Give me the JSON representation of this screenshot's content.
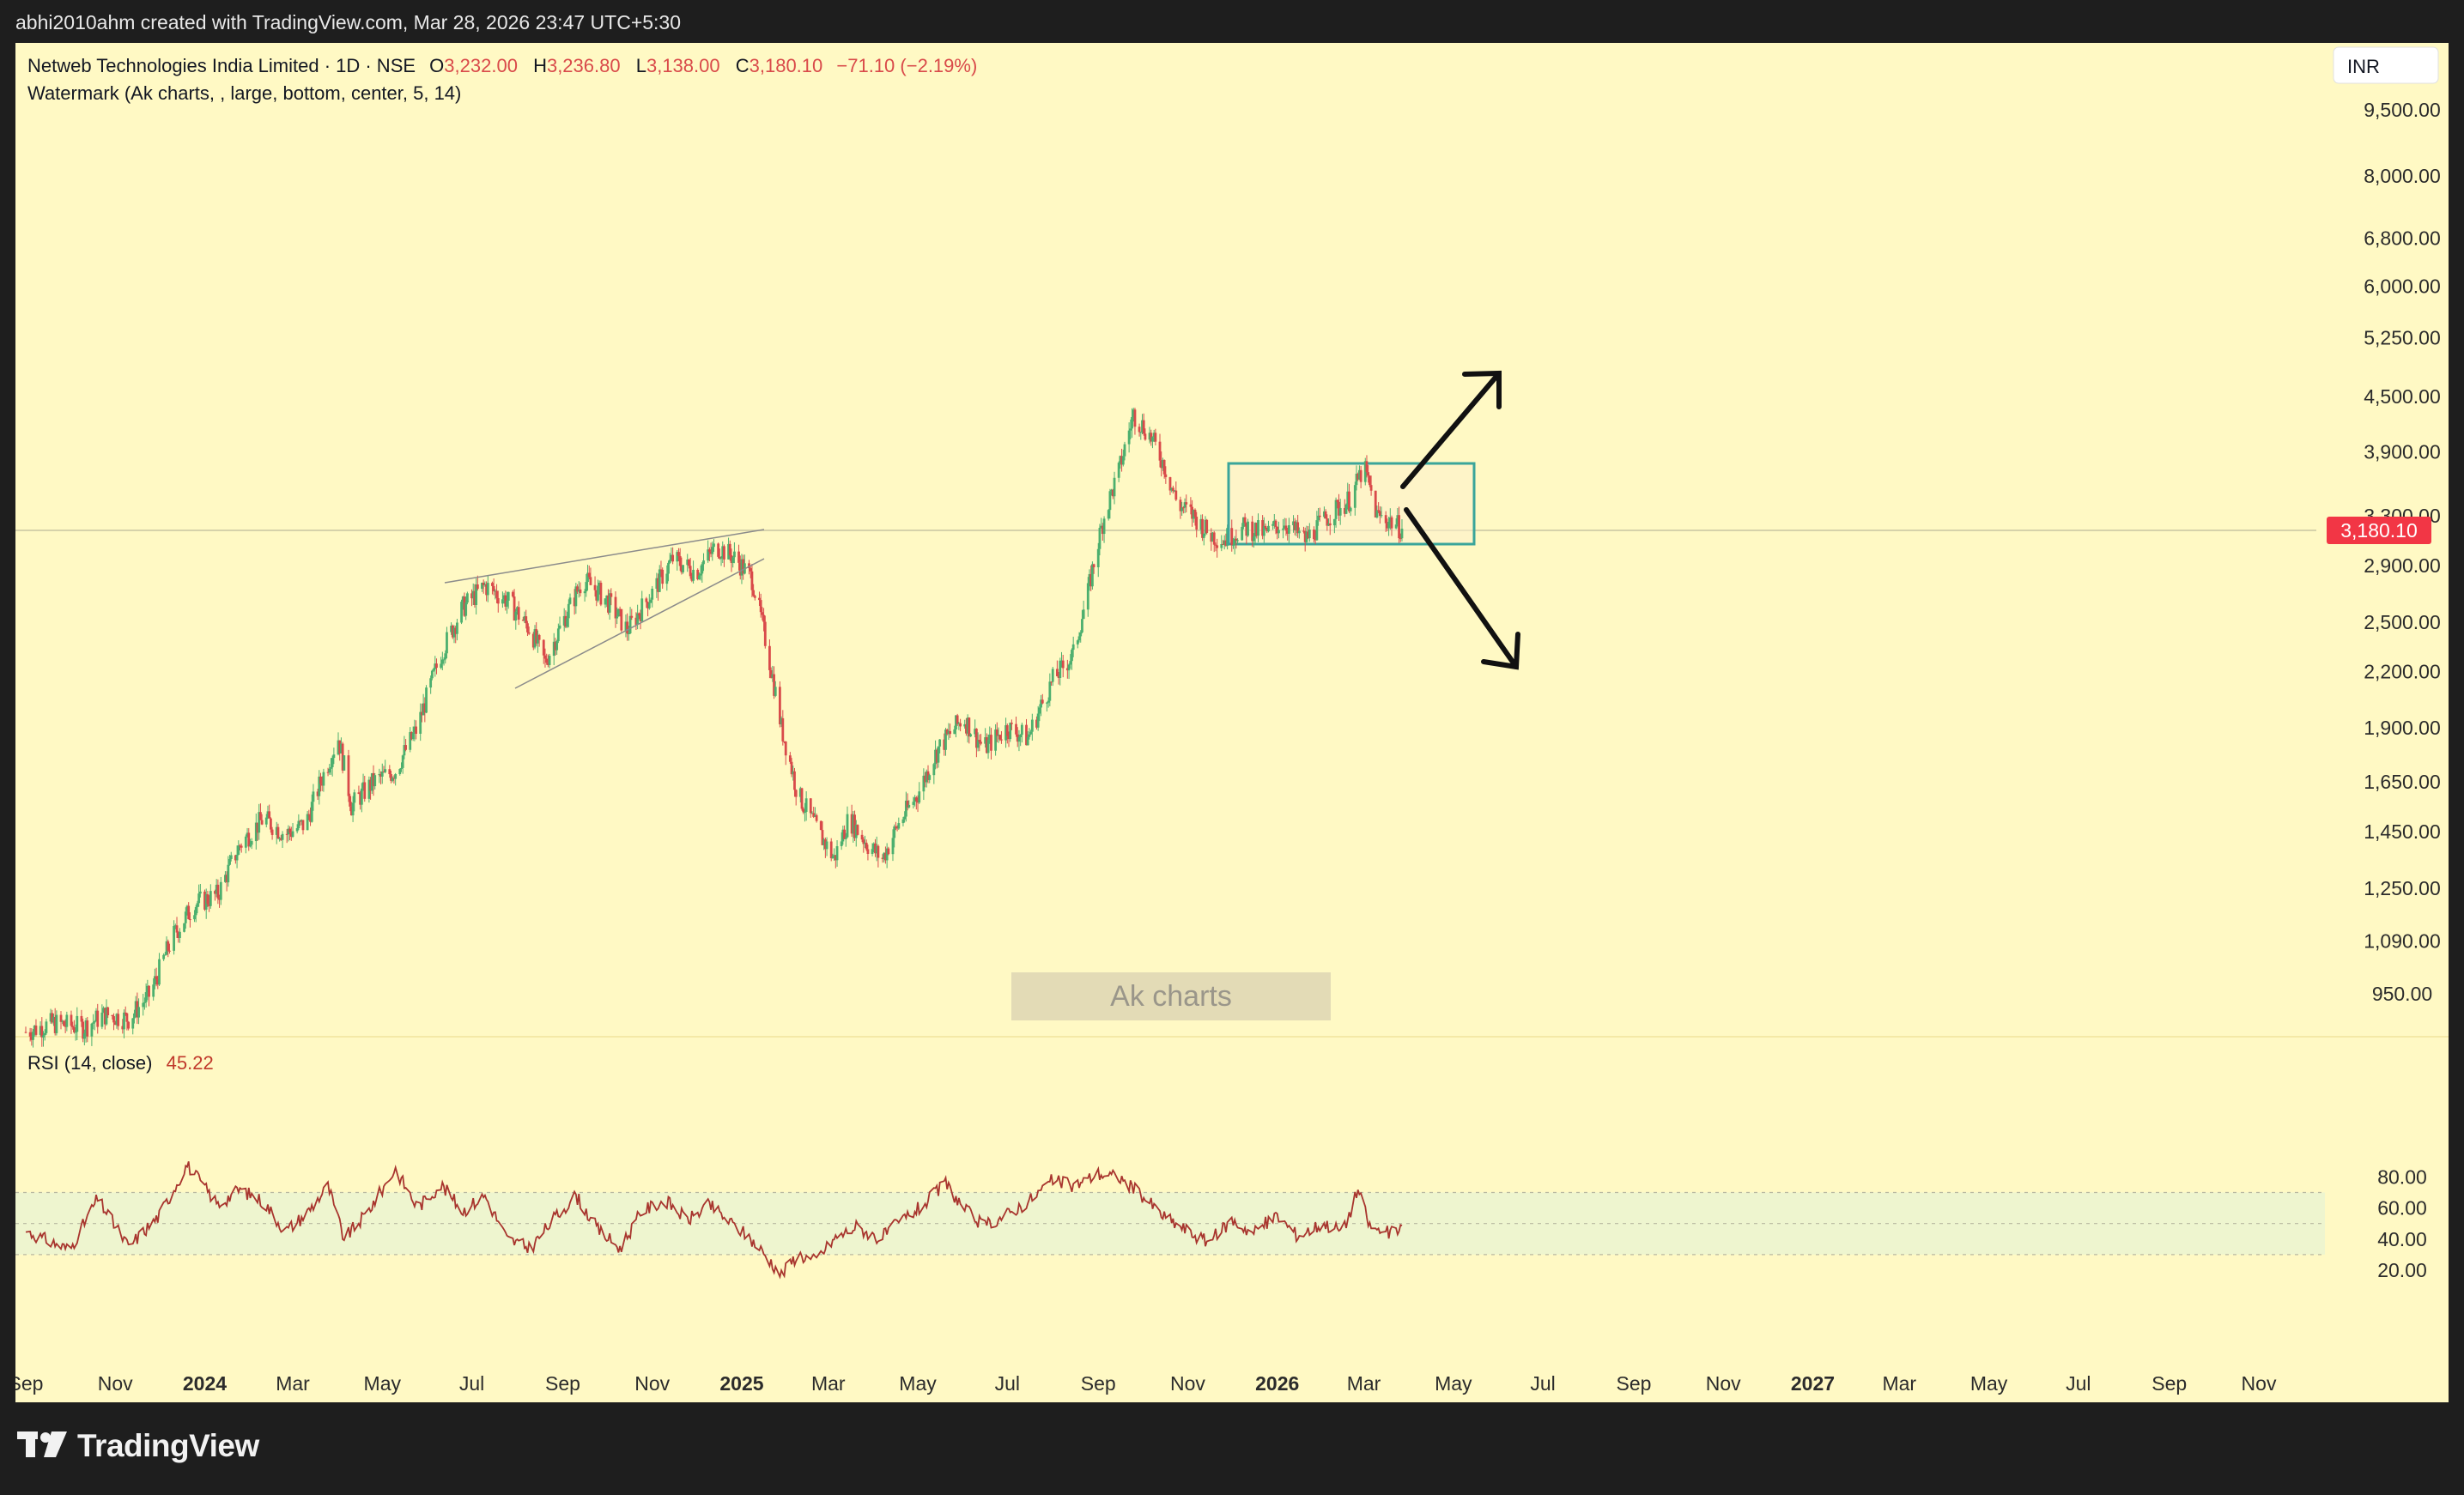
{
  "header": {
    "attribution": "abhi2010ahm created with TradingView.com, Mar 28, 2026 23:47 UTC+5:30"
  },
  "legend": {
    "symbol": "Netweb Technologies India Limited · 1D · NSE",
    "o_label": "O",
    "o_value": "3,232.00",
    "h_label": "H",
    "h_value": "3,236.80",
    "l_label": "L",
    "l_value": "3,138.00",
    "c_label": "C",
    "c_value": "3,180.10",
    "change": "−71.10 (−2.19%)",
    "watermark_indicator": "Watermark (Ak charts, , large, bottom, center, 5, 14)"
  },
  "currency": "INR",
  "last_price_tag": "3,180.10",
  "watermark_text": "Ak charts",
  "rsi": {
    "label": "RSI (14, close)",
    "value": "45.22"
  },
  "footer": {
    "brand": "TradingView"
  },
  "colors": {
    "background": "#fff9c4",
    "up": "#4caf6e",
    "down": "#d94a4a",
    "rsi_line": "#a8352e",
    "rsi_band": "#eef5cf",
    "box": "#3aa59a",
    "price_tag": "#f23645",
    "frame": "#1e1e1e"
  },
  "chart_data": {
    "type": "candlestick",
    "scale": "log",
    "price_ticks": [
      9500,
      8000,
      6800,
      6000,
      5250,
      4500,
      3900,
      3300,
      2900,
      2500,
      2200,
      1900,
      1650,
      1450,
      1250,
      1090,
      950
    ],
    "price_tick_labels": [
      "9,500.00",
      "8,000.00",
      "6,800.00",
      "6,000.00",
      "5,250.00",
      "4,500.00",
      "3,900.00",
      "3,300.00",
      "2,900.00",
      "2,500.00",
      "2,200.00",
      "1,900.00",
      "1,650.00",
      "1,450.00",
      "1,250.00",
      "1,090.00",
      "950.00"
    ],
    "x_labels": [
      {
        "date": "2023-09-01",
        "text": "Sep"
      },
      {
        "date": "2023-11-01",
        "text": "Nov"
      },
      {
        "date": "2024-01-01",
        "text": "2024",
        "year": true
      },
      {
        "date": "2024-03-01",
        "text": "Mar"
      },
      {
        "date": "2024-05-01",
        "text": "May"
      },
      {
        "date": "2024-07-01",
        "text": "Jul"
      },
      {
        "date": "2024-09-01",
        "text": "Sep"
      },
      {
        "date": "2024-11-01",
        "text": "Nov"
      },
      {
        "date": "2025-01-01",
        "text": "2025",
        "year": true
      },
      {
        "date": "2025-03-01",
        "text": "Mar"
      },
      {
        "date": "2025-05-01",
        "text": "May"
      },
      {
        "date": "2025-07-01",
        "text": "Jul"
      },
      {
        "date": "2025-09-01",
        "text": "Sep"
      },
      {
        "date": "2025-11-01",
        "text": "Nov"
      },
      {
        "date": "2026-01-01",
        "text": "2026",
        "year": true
      },
      {
        "date": "2026-03-01",
        "text": "Mar"
      },
      {
        "date": "2026-05-01",
        "text": "May"
      },
      {
        "date": "2026-07-01",
        "text": "Jul"
      },
      {
        "date": "2026-09-01",
        "text": "Sep"
      },
      {
        "date": "2026-11-01",
        "text": "Nov"
      },
      {
        "date": "2027-01-01",
        "text": "2027",
        "year": true
      },
      {
        "date": "2027-03-01",
        "text": "Mar"
      },
      {
        "date": "2027-05-01",
        "text": "May"
      },
      {
        "date": "2027-07-01",
        "text": "Jul"
      },
      {
        "date": "2027-09-01",
        "text": "Sep"
      },
      {
        "date": "2027-11-01",
        "text": "Nov"
      }
    ],
    "price_path": [
      [
        "2023-09-01",
        860
      ],
      [
        "2023-09-20",
        880
      ],
      [
        "2023-10-10",
        870
      ],
      [
        "2023-10-25",
        900
      ],
      [
        "2023-11-10",
        890
      ],
      [
        "2023-11-25",
        950
      ],
      [
        "2023-12-10",
        1100
      ],
      [
        "2023-12-25",
        1200
      ],
      [
        "2024-01-10",
        1230
      ],
      [
        "2024-01-25",
        1400
      ],
      [
        "2024-02-10",
        1500
      ],
      [
        "2024-02-25",
        1440
      ],
      [
        "2024-03-10",
        1480
      ],
      [
        "2024-03-20",
        1650
      ],
      [
        "2024-04-01",
        1850
      ],
      [
        "2024-04-10",
        1550
      ],
      [
        "2024-04-25",
        1650
      ],
      [
        "2024-05-10",
        1700
      ],
      [
        "2024-05-25",
        1900
      ],
      [
        "2024-06-10",
        2300
      ],
      [
        "2024-06-25",
        2600
      ],
      [
        "2024-07-10",
        2750
      ],
      [
        "2024-07-25",
        2650
      ],
      [
        "2024-08-10",
        2450
      ],
      [
        "2024-08-20",
        2250
      ],
      [
        "2024-09-01",
        2500
      ],
      [
        "2024-09-15",
        2800
      ],
      [
        "2024-10-01",
        2650
      ],
      [
        "2024-10-15",
        2450
      ],
      [
        "2024-11-01",
        2700
      ],
      [
        "2024-11-15",
        2950
      ],
      [
        "2024-12-01",
        2850
      ],
      [
        "2024-12-15",
        3050
      ],
      [
        "2024-12-28",
        2950
      ],
      [
        "2025-01-08",
        2800
      ],
      [
        "2025-01-18",
        2350
      ],
      [
        "2025-01-28",
        1900
      ],
      [
        "2025-02-08",
        1600
      ],
      [
        "2025-02-22",
        1450
      ],
      [
        "2025-03-05",
        1350
      ],
      [
        "2025-03-15",
        1500
      ],
      [
        "2025-03-28",
        1400
      ],
      [
        "2025-04-07",
        1350
      ],
      [
        "2025-04-18",
        1480
      ],
      [
        "2025-05-01",
        1600
      ],
      [
        "2025-05-15",
        1800
      ],
      [
        "2025-06-01",
        1950
      ],
      [
        "2025-06-15",
        1800
      ],
      [
        "2025-07-01",
        1900
      ],
      [
        "2025-07-15",
        1850
      ],
      [
        "2025-08-01",
        2150
      ],
      [
        "2025-08-15",
        2300
      ],
      [
        "2025-08-25",
        2700
      ],
      [
        "2025-09-05",
        3300
      ],
      [
        "2025-09-15",
        3700
      ],
      [
        "2025-09-25",
        4300
      ],
      [
        "2025-10-05",
        4100
      ],
      [
        "2025-10-15",
        3800
      ],
      [
        "2025-10-25",
        3400
      ],
      [
        "2025-11-05",
        3300
      ],
      [
        "2025-11-15",
        3150
      ],
      [
        "2025-11-25",
        3100
      ],
      [
        "2025-12-10",
        3200
      ],
      [
        "2025-12-25",
        3150
      ],
      [
        "2026-01-05",
        3250
      ],
      [
        "2026-01-20",
        3100
      ],
      [
        "2026-02-05",
        3300
      ],
      [
        "2026-02-20",
        3450
      ],
      [
        "2026-03-01",
        3750
      ],
      [
        "2026-03-10",
        3300
      ],
      [
        "2026-03-20",
        3250
      ],
      [
        "2026-03-28",
        3180.1
      ]
    ],
    "rsi_path": [
      [
        "2023-09-01",
        45
      ],
      [
        "2023-10-01",
        33
      ],
      [
        "2023-10-20",
        66
      ],
      [
        "2023-11-10",
        35
      ],
      [
        "2023-12-01",
        55
      ],
      [
        "2023-12-20",
        88
      ],
      [
        "2024-01-10",
        62
      ],
      [
        "2024-01-25",
        72
      ],
      [
        "2024-02-10",
        64
      ],
      [
        "2024-02-25",
        45
      ],
      [
        "2024-03-10",
        56
      ],
      [
        "2024-03-25",
        74
      ],
      [
        "2024-04-05",
        40
      ],
      [
        "2024-04-20",
        56
      ],
      [
        "2024-05-10",
        85
      ],
      [
        "2024-05-25",
        60
      ],
      [
        "2024-06-10",
        75
      ],
      [
        "2024-06-25",
        58
      ],
      [
        "2024-07-10",
        68
      ],
      [
        "2024-07-25",
        40
      ],
      [
        "2024-08-10",
        34
      ],
      [
        "2024-08-25",
        52
      ],
      [
        "2024-09-10",
        68
      ],
      [
        "2024-09-25",
        46
      ],
      [
        "2024-10-10",
        34
      ],
      [
        "2024-10-25",
        58
      ],
      [
        "2024-11-10",
        65
      ],
      [
        "2024-11-25",
        52
      ],
      [
        "2024-12-10",
        62
      ],
      [
        "2024-12-25",
        50
      ],
      [
        "2025-01-05",
        42
      ],
      [
        "2025-01-15",
        32
      ],
      [
        "2025-01-28",
        17
      ],
      [
        "2025-02-08",
        30
      ],
      [
        "2025-02-20",
        26
      ],
      [
        "2025-03-05",
        40
      ],
      [
        "2025-03-20",
        48
      ],
      [
        "2025-04-05",
        40
      ],
      [
        "2025-04-20",
        52
      ],
      [
        "2025-05-05",
        62
      ],
      [
        "2025-05-20",
        76
      ],
      [
        "2025-06-01",
        60
      ],
      [
        "2025-06-15",
        48
      ],
      [
        "2025-07-01",
        56
      ],
      [
        "2025-07-15",
        64
      ],
      [
        "2025-08-01",
        78
      ],
      [
        "2025-08-15",
        74
      ],
      [
        "2025-09-01",
        82
      ],
      [
        "2025-09-15",
        80
      ],
      [
        "2025-10-01",
        68
      ],
      [
        "2025-10-15",
        55
      ],
      [
        "2025-11-01",
        45
      ],
      [
        "2025-11-15",
        38
      ],
      [
        "2025-12-01",
        52
      ],
      [
        "2025-12-15",
        44
      ],
      [
        "2026-01-01",
        55
      ],
      [
        "2026-01-15",
        42
      ],
      [
        "2026-02-01",
        50
      ],
      [
        "2026-02-15",
        45
      ],
      [
        "2026-02-25",
        72
      ],
      [
        "2026-03-05",
        48
      ],
      [
        "2026-03-15",
        44
      ],
      [
        "2026-03-28",
        45.22
      ]
    ],
    "rsi_ticks": [
      80,
      60,
      40,
      20
    ],
    "rsi_tick_labels": [
      "80.00",
      "60.00",
      "40.00",
      "20.00"
    ],
    "rsi_bands": {
      "upper": 70,
      "middle": 50,
      "lower": 30
    }
  }
}
